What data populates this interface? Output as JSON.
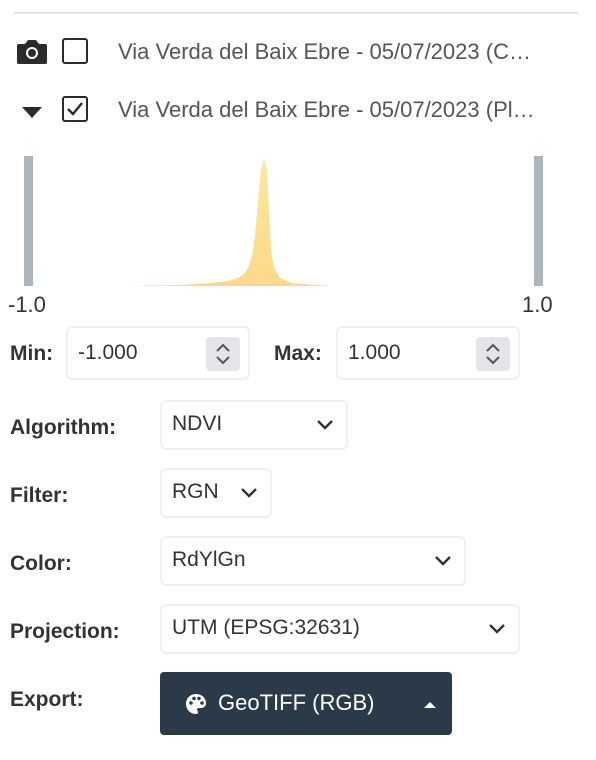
{
  "layers": [
    {
      "title": "Via Verda del Baix Ebre - 05/07/2023 (C…",
      "checked": false,
      "icon": "camera-icon"
    },
    {
      "title": "Via Verda del Baix Ebre - 05/07/2023 (Pl…",
      "checked": true,
      "icon": "caret-down-icon"
    }
  ],
  "histogram": {
    "min_label": "-1.0",
    "max_label": "1.0",
    "fill_color": "#fde69a"
  },
  "range": {
    "min_label": "Min:",
    "min_value": "-1.000",
    "max_label": "Max:",
    "max_value": "1.000"
  },
  "algorithm": {
    "label": "Algorithm:",
    "value": "NDVI"
  },
  "filter": {
    "label": "Filter:",
    "value": "RGN"
  },
  "color": {
    "label": "Color:",
    "value": "RdYlGn"
  },
  "projection": {
    "label": "Projection:",
    "value": "UTM (EPSG:32631)"
  },
  "export": {
    "label": "Export:",
    "button_label": "GeoTIFF (RGB)",
    "icon": "palette-icon",
    "caret": "caret-up-icon"
  }
}
